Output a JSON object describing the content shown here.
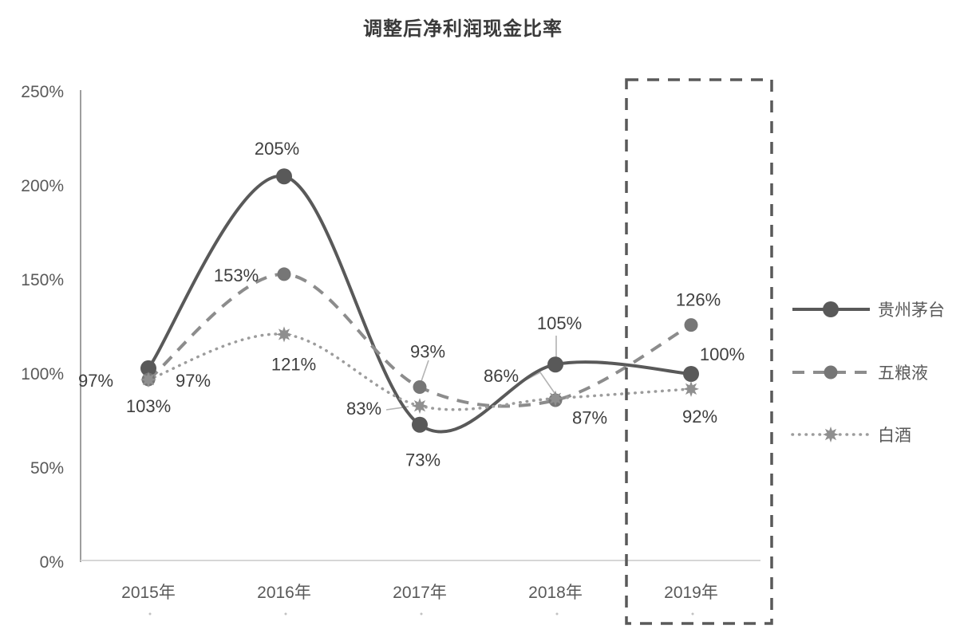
{
  "title": "调整后净利润现金比率",
  "chart_data": {
    "type": "line",
    "title": "调整后净利润现金比率",
    "categories": [
      "2015年",
      "2016年",
      "2017年",
      "2018年",
      "2019年"
    ],
    "y_ticks": [
      "0%",
      "50%",
      "100%",
      "150%",
      "200%",
      "250%"
    ],
    "ylim": [
      0,
      250
    ],
    "grid": false,
    "legend_position": "right",
    "highlighted_category": "2019年",
    "series": [
      {
        "name": "贵州茅台",
        "values": [
          103,
          205,
          73,
          105,
          100
        ],
        "labels": [
          "103%",
          "205%",
          "73%",
          "105%",
          "100%"
        ],
        "line_style": "solid",
        "marker": "circle",
        "color": "#595959",
        "marker_color": "#595959",
        "label_offsets": [
          [
            0,
            48
          ],
          [
            -9,
            -34
          ],
          [
            4,
            45
          ],
          [
            5,
            -51
          ],
          [
            39,
            -24
          ]
        ]
      },
      {
        "name": "五粮液",
        "values": [
          97,
          153,
          93,
          86,
          126
        ],
        "labels": [
          "97%",
          "153%",
          "93%",
          "86%",
          "126%"
        ],
        "line_style": "dashed",
        "marker": "circle",
        "color": "#8c8c8c",
        "marker_color": "#767676",
        "label_offsets": [
          [
            -66,
            2
          ],
          [
            -60,
            2
          ],
          [
            10,
            -44
          ],
          [
            -68,
            -30
          ],
          [
            9,
            -31
          ]
        ]
      },
      {
        "name": "白酒",
        "values": [
          97,
          121,
          83,
          87,
          92
        ],
        "labels": [
          "97%",
          "121%",
          "83%",
          "87%",
          "92%"
        ],
        "line_style": "dotted",
        "marker": "star",
        "color": "#9c9c9c",
        "marker_color": "#8f8f8f",
        "label_offsets": [
          [
            56,
            2
          ],
          [
            12,
            38
          ],
          [
            -70,
            4
          ],
          [
            43,
            25
          ],
          [
            11,
            35
          ]
        ]
      }
    ],
    "leader_lines": [
      {
        "series": "五粮液",
        "category": "2017年",
        "points": [
          [
            537,
            452
          ],
          [
            527,
            481
          ]
        ]
      },
      {
        "series": "白酒",
        "category": "2017年",
        "points": [
          [
            484,
            514
          ],
          [
            512,
            510
          ]
        ]
      },
      {
        "series": "贵州茅台",
        "category": "2018年",
        "points": [
          [
            697,
            421
          ],
          [
            697,
            450
          ]
        ]
      },
      {
        "series": "五粮液",
        "category": "2018年",
        "points": [
          [
            658,
            477
          ],
          [
            677,
            467
          ],
          [
            697,
            496
          ]
        ]
      }
    ]
  },
  "colors": {
    "title_text": "#3a3a3a",
    "axis_line": "#9e9e9e",
    "x_axis_line": "#d6d6d6",
    "tick_text": "#595959",
    "data_label_text": "#3f3f3f",
    "legend_text": "#595959",
    "leader_line": "#b3b3b3",
    "highlight_box": "#595959",
    "minor_dot": "#c2c2c2"
  }
}
